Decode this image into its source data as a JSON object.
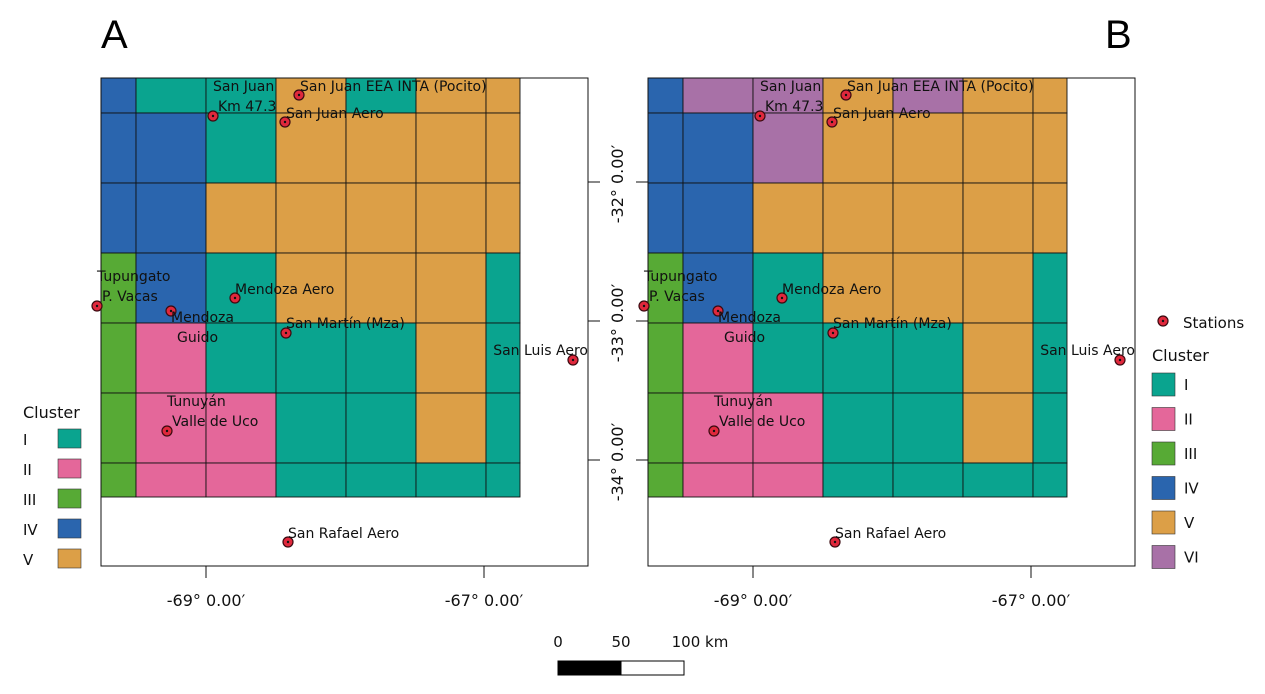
{
  "colors": {
    "I": "#0aa48f",
    "II": "#e4679a",
    "III": "#57aa35",
    "IV": "#2a65ae",
    "V": "#dc9f47",
    "VI": "#a871a7",
    "station": "#e0283c",
    "grid": "#111111"
  },
  "panels": [
    {
      "label": "A",
      "grid": [
        [
          "IV",
          "I",
          "I",
          "V",
          "I",
          "V",
          "V"
        ],
        [
          "IV",
          "IV",
          "I",
          "V",
          "V",
          "V",
          "V"
        ],
        [
          "IV",
          "IV",
          "V",
          "V",
          "V",
          "V",
          "V"
        ],
        [
          "III",
          "IV",
          "I",
          "V",
          "V",
          "V",
          "I"
        ],
        [
          "III",
          "II",
          "I",
          "I",
          "I",
          "V",
          "I"
        ],
        [
          "III",
          "II",
          "II",
          "I",
          "I",
          "V",
          "I"
        ],
        [
          "III",
          "II",
          "II",
          "I",
          "I",
          "I",
          "I"
        ]
      ],
      "legend": {
        "title": "Cluster",
        "items": [
          {
            "label": "I",
            "cluster": "I"
          },
          {
            "label": "II",
            "cluster": "II"
          },
          {
            "label": "III",
            "cluster": "III"
          },
          {
            "label": "IV",
            "cluster": "IV"
          },
          {
            "label": "V",
            "cluster": "V"
          }
        ]
      }
    },
    {
      "label": "B",
      "grid": [
        [
          "IV",
          "VI",
          "VI",
          "V",
          "VI",
          "V",
          "V"
        ],
        [
          "IV",
          "IV",
          "VI",
          "V",
          "V",
          "V",
          "V"
        ],
        [
          "IV",
          "IV",
          "V",
          "V",
          "V",
          "V",
          "V"
        ],
        [
          "III",
          "IV",
          "I",
          "V",
          "V",
          "V",
          "I"
        ],
        [
          "III",
          "II",
          "I",
          "I",
          "I",
          "V",
          "I"
        ],
        [
          "III",
          "II",
          "II",
          "I",
          "I",
          "V",
          "I"
        ],
        [
          "III",
          "II",
          "II",
          "I",
          "I",
          "I",
          "I"
        ]
      ],
      "legend": {
        "title": "Cluster",
        "stations_label": "Stations",
        "items": [
          {
            "label": "I",
            "cluster": "I"
          },
          {
            "label": "II",
            "cluster": "II"
          },
          {
            "label": "III",
            "cluster": "III"
          },
          {
            "label": "IV",
            "cluster": "IV"
          },
          {
            "label": "V",
            "cluster": "V"
          },
          {
            "label": "VI",
            "cluster": "VI"
          }
        ]
      }
    }
  ],
  "stations": [
    {
      "name": "San Juan EEA INTA (Pocito)",
      "lines": [
        "San Juan EEA INTA (Pocito)"
      ]
    },
    {
      "name": "San Juan Km 47.3",
      "lines": [
        "San Juan",
        "Km 47.3"
      ]
    },
    {
      "name": "San Juan Aero",
      "lines": [
        "San Juan Aero"
      ]
    },
    {
      "name": "Tupungato P. Vacas",
      "lines": [
        "Tupungato",
        "P. Vacas"
      ]
    },
    {
      "name": "Mendoza Aero",
      "lines": [
        "Mendoza Aero"
      ]
    },
    {
      "name": "Mendoza Guido",
      "lines": [
        "Mendoza",
        "Guido"
      ]
    },
    {
      "name": "San Martín (Mza)",
      "lines": [
        "San Martín (Mza)"
      ]
    },
    {
      "name": "San Luis Aero",
      "lines": [
        "San Luis Aero"
      ]
    },
    {
      "name": "Tunuyán Valle de Uco",
      "lines": [
        "Tunuyán",
        "Valle de Uco"
      ]
    },
    {
      "name": "San Rafael Aero",
      "lines": [
        "San Rafael Aero"
      ]
    }
  ],
  "axes": {
    "x_ticks": [
      "-69° 0.00′",
      "-67° 0.00′"
    ],
    "y_ticks": [
      "-32° 0.00′",
      "-33° 0.00′",
      "-34° 0.00′"
    ]
  },
  "scale_bar": {
    "labels": [
      "0",
      "50",
      "100 km"
    ]
  }
}
